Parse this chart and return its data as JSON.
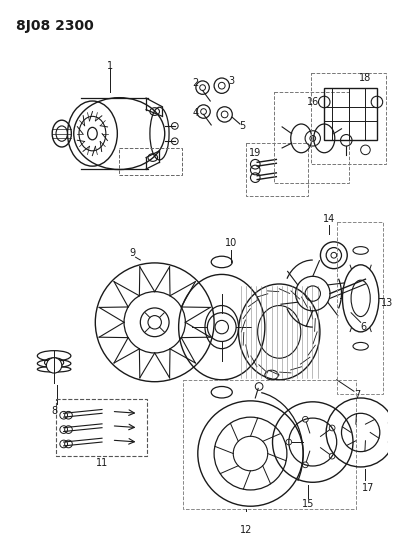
{
  "title": "8J08 2300",
  "bg_color": "#ffffff",
  "line_color": "#1a1a1a",
  "title_fontsize": 10,
  "fig_width": 3.99,
  "fig_height": 5.33,
  "dpi": 100
}
